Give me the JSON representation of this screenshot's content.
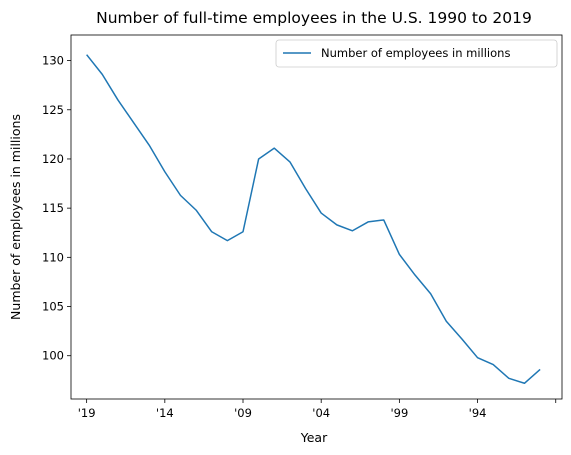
{
  "chart_data": {
    "type": "line",
    "title": "Number of full-time employees in the U.S. 1990 to 2019",
    "xlabel": "Year",
    "ylabel": "Number of employees in millions",
    "x_reversed": true,
    "x": [
      2019,
      2018,
      2017,
      2016,
      2015,
      2014,
      2013,
      2012,
      2011,
      2010,
      2009,
      2008,
      2007,
      2006,
      2005,
      2004,
      2003,
      2002,
      2001,
      2000,
      1999,
      1998,
      1997,
      1996,
      1995,
      1994,
      1993,
      1992,
      1991,
      1990
    ],
    "x_ticks": [
      2019,
      2014,
      2009,
      2004,
      1999,
      1994,
      1989
    ],
    "x_tick_labels": [
      "'19",
      "'14",
      "'09",
      "'04",
      "'99",
      "'94",
      ""
    ],
    "xlim": [
      2020,
      1988.6
    ],
    "ylim": [
      95.6,
      132.6
    ],
    "y_ticks": [
      100,
      105,
      110,
      115,
      120,
      125,
      130
    ],
    "y_tick_labels": [
      "100",
      "105",
      "110",
      "115",
      "120",
      "125",
      "130"
    ],
    "series": [
      {
        "name": "Number of employees in millions",
        "color": "#1f77b4",
        "values": [
          130.6,
          128.6,
          126.0,
          123.7,
          121.4,
          118.7,
          116.3,
          114.8,
          112.6,
          111.7,
          112.6,
          120.0,
          121.1,
          119.7,
          117.0,
          114.5,
          113.3,
          112.7,
          113.6,
          113.8,
          110.3,
          108.2,
          106.3,
          103.5,
          101.7,
          99.8,
          99.1,
          97.7,
          97.2,
          98.6
        ]
      }
    ],
    "legend_position": "top-right",
    "grid": false
  }
}
